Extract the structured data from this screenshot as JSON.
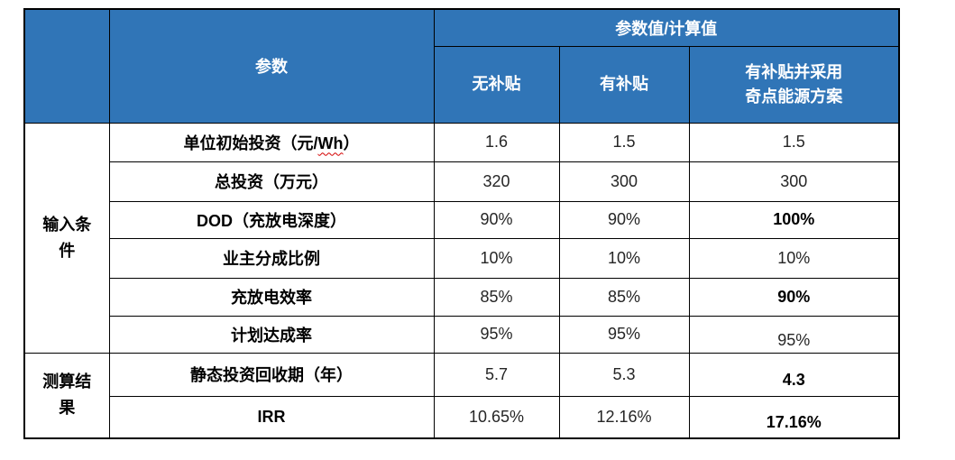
{
  "colors": {
    "header_bg": "#3075B7",
    "header_text": "#FFFFFF",
    "border": "#000000",
    "squiggle": "#D40000"
  },
  "table": {
    "header": {
      "param_col": "参数",
      "value_group": "参数值/计算值",
      "scenarios": [
        "无补贴",
        "有补贴",
        "有补贴并采用\n奇点能源方案"
      ]
    },
    "groups": [
      {
        "label": "输入条\n件",
        "rows": [
          {
            "label": "单位初始投资（元/Wh）",
            "squiggle": "Wh",
            "values": [
              {
                "text": "1.6",
                "bold": false
              },
              {
                "text": "1.5",
                "bold": false
              },
              {
                "text": "1.5",
                "bold": false
              }
            ]
          },
          {
            "label": "总投资（万元）",
            "values": [
              {
                "text": "320",
                "bold": false
              },
              {
                "text": "300",
                "bold": false
              },
              {
                "text": "300",
                "bold": false
              }
            ]
          },
          {
            "label": "DOD（充放电深度）",
            "values": [
              {
                "text": "90%",
                "bold": false
              },
              {
                "text": "90%",
                "bold": false
              },
              {
                "text": "100%",
                "bold": true
              }
            ]
          },
          {
            "label": "业主分成比例",
            "values": [
              {
                "text": "10%",
                "bold": false
              },
              {
                "text": "10%",
                "bold": false
              },
              {
                "text": "10%",
                "bold": false
              }
            ]
          },
          {
            "label": "充放电效率",
            "values": [
              {
                "text": "85%",
                "bold": false
              },
              {
                "text": "85%",
                "bold": false
              },
              {
                "text": "90%",
                "bold": true
              }
            ]
          },
          {
            "label": "计划达成率",
            "values": [
              {
                "text": "95%",
                "bold": false
              },
              {
                "text": "95%",
                "bold": false
              },
              {
                "text": "95%",
                "bold": false
              }
            ]
          }
        ]
      },
      {
        "label": "测算结\n果",
        "rows": [
          {
            "label": "静态投资回收期（年）",
            "values": [
              {
                "text": "5.7",
                "bold": false
              },
              {
                "text": "5.3",
                "bold": false
              },
              {
                "text": "4.3",
                "bold": true
              }
            ]
          },
          {
            "label": "IRR",
            "values": [
              {
                "text": "10.65%",
                "bold": false
              },
              {
                "text": "12.16%",
                "bold": false
              },
              {
                "text": "17.16%",
                "bold": true
              }
            ]
          }
        ]
      }
    ]
  }
}
